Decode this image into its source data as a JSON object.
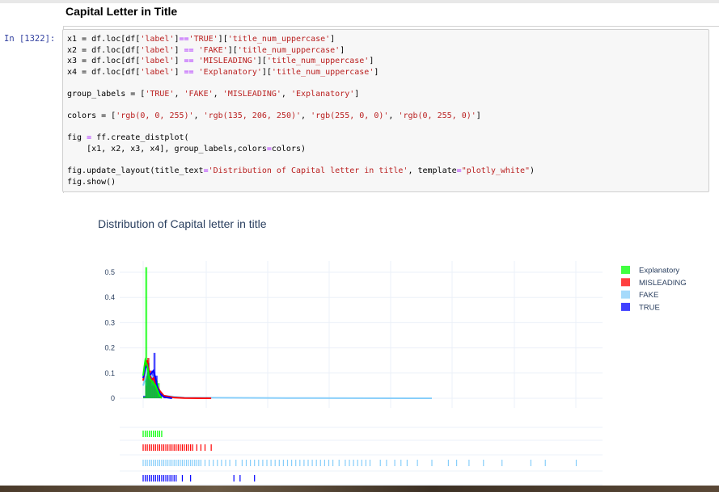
{
  "notebook": {
    "heading": "Capital Letter in Title",
    "prompt": "In [1322]:"
  },
  "code": {
    "lines": [
      [
        {
          "t": "x1 = df.loc[df["
        },
        {
          "t": "'label'",
          "c": "s"
        },
        {
          "t": "]"
        },
        {
          "t": "==",
          "c": "o"
        },
        {
          "t": "'TRUE'",
          "c": "s"
        },
        {
          "t": "]["
        },
        {
          "t": "'title_num_uppercase'",
          "c": "s"
        },
        {
          "t": "]"
        }
      ],
      [
        {
          "t": "x2 = df.loc[df["
        },
        {
          "t": "'label'",
          "c": "s"
        },
        {
          "t": "] "
        },
        {
          "t": "==",
          "c": "o"
        },
        {
          "t": " "
        },
        {
          "t": "'FAKE'",
          "c": "s"
        },
        {
          "t": "]["
        },
        {
          "t": "'title_num_uppercase'",
          "c": "s"
        },
        {
          "t": "]"
        }
      ],
      [
        {
          "t": "x3 = df.loc[df["
        },
        {
          "t": "'label'",
          "c": "s"
        },
        {
          "t": "] "
        },
        {
          "t": "==",
          "c": "o"
        },
        {
          "t": " "
        },
        {
          "t": "'MISLEADING'",
          "c": "s"
        },
        {
          "t": "]["
        },
        {
          "t": "'title_num_uppercase'",
          "c": "s"
        },
        {
          "t": "]"
        }
      ],
      [
        {
          "t": "x4 = df.loc[df["
        },
        {
          "t": "'label'",
          "c": "s"
        },
        {
          "t": "] "
        },
        {
          "t": "==",
          "c": "o"
        },
        {
          "t": " "
        },
        {
          "t": "'Explanatory'",
          "c": "s"
        },
        {
          "t": "]["
        },
        {
          "t": "'title_num_uppercase'",
          "c": "s"
        },
        {
          "t": "]"
        }
      ],
      [],
      [
        {
          "t": "group_labels = ["
        },
        {
          "t": "'TRUE'",
          "c": "s"
        },
        {
          "t": ", "
        },
        {
          "t": "'FAKE'",
          "c": "s"
        },
        {
          "t": ", "
        },
        {
          "t": "'MISLEADING'",
          "c": "s"
        },
        {
          "t": ", "
        },
        {
          "t": "'Explanatory'",
          "c": "s"
        },
        {
          "t": "]"
        }
      ],
      [],
      [
        {
          "t": "colors = ["
        },
        {
          "t": "'rgb(0, 0, 255)'",
          "c": "s"
        },
        {
          "t": ", "
        },
        {
          "t": "'rgb(135, 206, 250)'",
          "c": "s"
        },
        {
          "t": ", "
        },
        {
          "t": "'rgb(255, 0, 0)'",
          "c": "s"
        },
        {
          "t": ", "
        },
        {
          "t": "'rgb(0, 255, 0)'",
          "c": "s"
        },
        {
          "t": "]"
        }
      ],
      [],
      [
        {
          "t": "fig "
        },
        {
          "t": "=",
          "c": "o"
        },
        {
          "t": " ff.create_distplot("
        }
      ],
      [
        {
          "t": "    [x1, x2, x3, x4], group_labels,colors"
        },
        {
          "t": "=",
          "c": "o"
        },
        {
          "t": "colors)"
        }
      ],
      [],
      [
        {
          "t": "fig.update_layout(title_text"
        },
        {
          "t": "=",
          "c": "o"
        },
        {
          "t": "'Distribution of Capital letter in title'",
          "c": "s"
        },
        {
          "t": ", template"
        },
        {
          "t": "=",
          "c": "o"
        },
        {
          "t": "\"plotly_white\"",
          "c": "s"
        },
        {
          "t": ")"
        }
      ],
      [
        {
          "t": "fig.show()"
        }
      ]
    ]
  },
  "chart_data": {
    "type": "bar",
    "title": "Distribution of Capital letter in title",
    "xlabel": "",
    "ylabel": "",
    "ylim": [
      0,
      0.55
    ],
    "y_ticks": [
      "0",
      "0.1",
      "0.2",
      "0.3",
      "0.4",
      "0.5"
    ],
    "grid": true,
    "legend_position": "top-right",
    "legend": [
      "Explanatory",
      "MISLEADING",
      "FAKE",
      "TRUE"
    ],
    "series": [
      {
        "name": "TRUE",
        "color": "#0000ff",
        "hist": [
          [
            0,
            0.01
          ],
          [
            1,
            0.09
          ],
          [
            2,
            0.14
          ],
          [
            3,
            0.1
          ],
          [
            4,
            0.11
          ],
          [
            5,
            0.18
          ],
          [
            6,
            0.09
          ],
          [
            7,
            0.03
          ],
          [
            8,
            0.01
          ]
        ],
        "kde": [
          [
            0,
            0.08
          ],
          [
            1,
            0.12
          ],
          [
            2,
            0.13
          ],
          [
            3,
            0.09
          ],
          [
            4,
            0.1
          ],
          [
            5,
            0.11
          ],
          [
            6,
            0.08
          ],
          [
            7,
            0.04
          ],
          [
            8,
            0.02
          ],
          [
            10,
            0.005
          ],
          [
            14,
            0.0
          ]
        ],
        "rug": [
          0,
          1,
          2,
          3,
          4,
          5,
          6,
          7,
          8,
          9,
          10,
          11,
          12,
          13,
          14,
          15,
          16,
          19,
          23,
          44,
          47,
          54
        ]
      },
      {
        "name": "FAKE",
        "color": "#87cefa",
        "hist": [
          [
            0,
            0.005
          ],
          [
            1,
            0.07
          ],
          [
            2,
            0.16
          ],
          [
            3,
            0.11
          ],
          [
            4,
            0.09
          ],
          [
            5,
            0.09
          ],
          [
            6,
            0.07
          ],
          [
            7,
            0.04
          ],
          [
            8,
            0.02
          ],
          [
            10,
            0.005
          ],
          [
            20,
            0.002
          ],
          [
            40,
            0.002
          ]
        ],
        "kde": [
          [
            0,
            0.05
          ],
          [
            1,
            0.08
          ],
          [
            2,
            0.12
          ],
          [
            3,
            0.1
          ],
          [
            4,
            0.09
          ],
          [
            5,
            0.08
          ],
          [
            6,
            0.06
          ],
          [
            8,
            0.03
          ],
          [
            10,
            0.01
          ],
          [
            20,
            0.003
          ],
          [
            40,
            0.002
          ],
          [
            70,
            0.001
          ],
          [
            140,
            0.0
          ]
        ],
        "rug": [
          0,
          1,
          2,
          3,
          4,
          5,
          6,
          7,
          8,
          9,
          10,
          11,
          12,
          13,
          14,
          15,
          16,
          17,
          18,
          19,
          20,
          21,
          22,
          23,
          24,
          25,
          26,
          27,
          28,
          30,
          32,
          34,
          36,
          38,
          40,
          42,
          45,
          48,
          50,
          52,
          54,
          56,
          58,
          60,
          62,
          64,
          66,
          68,
          70,
          72,
          74,
          76,
          78,
          80,
          82,
          84,
          86,
          88,
          90,
          92,
          95,
          98,
          100,
          102,
          104,
          106,
          108,
          110,
          115,
          118,
          122,
          125,
          128,
          133,
          140,
          148,
          152,
          158,
          165,
          174,
          188,
          195,
          210
        ]
      },
      {
        "name": "MISLEADING",
        "color": "#ff0000",
        "hist": [
          [
            0,
            0.005
          ],
          [
            1,
            0.05
          ],
          [
            2,
            0.16
          ],
          [
            3,
            0.11
          ],
          [
            4,
            0.05
          ],
          [
            5,
            0.08
          ],
          [
            6,
            0.07
          ],
          [
            7,
            0.03
          ],
          [
            8,
            0.02
          ],
          [
            10,
            0.01
          ]
        ],
        "kde": [
          [
            0,
            0.07
          ],
          [
            1,
            0.12
          ],
          [
            2,
            0.15
          ],
          [
            3,
            0.1
          ],
          [
            4,
            0.07
          ],
          [
            5,
            0.08
          ],
          [
            6,
            0.06
          ],
          [
            8,
            0.03
          ],
          [
            10,
            0.01
          ],
          [
            15,
            0.003
          ],
          [
            20,
            0.001
          ],
          [
            33,
            0.0
          ]
        ],
        "rug": [
          0,
          1,
          2,
          3,
          4,
          5,
          6,
          7,
          8,
          9,
          10,
          11,
          12,
          13,
          14,
          15,
          16,
          17,
          18,
          19,
          20,
          21,
          22,
          23,
          24,
          26,
          28,
          30,
          33
        ]
      },
      {
        "name": "Explanatory",
        "color": "#00ff00",
        "hist": [
          [
            0,
            0.005
          ],
          [
            1,
            0.52
          ],
          [
            2,
            0.12
          ],
          [
            3,
            0.08
          ],
          [
            4,
            0.07
          ],
          [
            5,
            0.06
          ],
          [
            6,
            0.07
          ],
          [
            7,
            0.06
          ]
        ],
        "kde": [
          [
            0,
            0.09
          ],
          [
            1,
            0.15
          ],
          [
            2,
            0.13
          ],
          [
            3,
            0.08
          ],
          [
            4,
            0.07
          ],
          [
            5,
            0.06
          ],
          [
            6,
            0.05
          ],
          [
            7,
            0.03
          ],
          [
            8,
            0.01
          ],
          [
            9,
            0.0
          ]
        ],
        "rug": [
          0,
          1,
          2,
          3,
          4,
          5,
          6,
          7,
          8,
          9
        ]
      }
    ]
  }
}
